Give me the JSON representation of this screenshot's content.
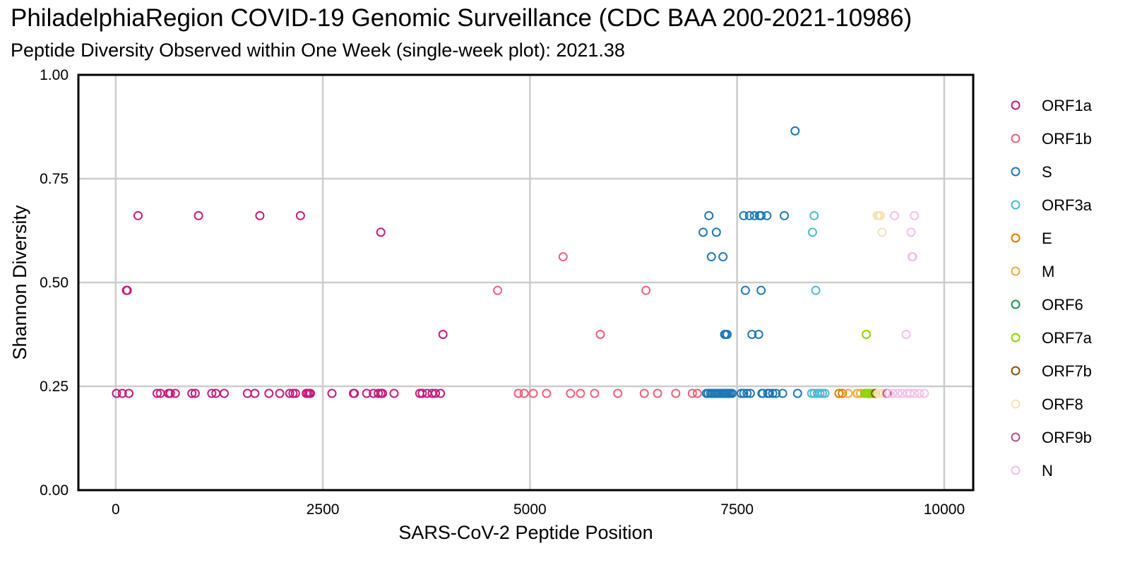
{
  "chart_data": {
    "type": "scatter",
    "title": "PhiladelphiaRegion COVID-19 Genomic Surveillance (CDC BAA 200-2021-10986)",
    "subtitle": "Peptide Diversity Observed within One Week (single-week plot): 2021.38",
    "xlabel": "SARS-CoV-2 Peptide Position",
    "ylabel": "Shannon Diversity",
    "xlim": [
      -450,
      10350
    ],
    "ylim": [
      0,
      1.0
    ],
    "x_ticks": [
      0,
      2500,
      5000,
      7500,
      10000
    ],
    "x_tick_labels": [
      "0",
      "2500",
      "5000",
      "7500",
      "10000"
    ],
    "y_ticks": [
      0,
      0.25,
      0.5,
      0.75,
      1.0
    ],
    "y_tick_labels": [
      "0.00",
      "0.25",
      "0.50",
      "0.75",
      "1.00"
    ],
    "grid": true,
    "legend_position": "right",
    "marker": "hollow-circle",
    "series": [
      {
        "name": "ORF1a",
        "color": "#c51b7d",
        "x": [
          10,
          80,
          160,
          130,
          140,
          270,
          500,
          540,
          640,
          660,
          720,
          920,
          960,
          1000,
          1160,
          1210,
          1310,
          1590,
          1680,
          1740,
          1850,
          1980,
          2100,
          2140,
          2170,
          2230,
          2300,
          2320,
          2350,
          2340,
          2610,
          2870,
          2880,
          3030,
          3110,
          3170,
          3200,
          3220,
          3360,
          3670,
          3700,
          3760,
          3820,
          3860,
          3920,
          3200,
          3950
        ],
        "y": [
          0.233,
          0.233,
          0.233,
          0.481,
          0.481,
          0.661,
          0.233,
          0.233,
          0.233,
          0.233,
          0.233,
          0.233,
          0.233,
          0.661,
          0.233,
          0.233,
          0.233,
          0.233,
          0.233,
          0.661,
          0.233,
          0.233,
          0.233,
          0.233,
          0.233,
          0.661,
          0.233,
          0.233,
          0.233,
          0.233,
          0.233,
          0.233,
          0.233,
          0.233,
          0.233,
          0.233,
          0.233,
          0.233,
          0.233,
          0.233,
          0.233,
          0.233,
          0.233,
          0.233,
          0.233,
          0.621,
          0.375
        ]
      },
      {
        "name": "ORF1b",
        "color": "#f0607a",
        "x": [
          4610,
          4860,
          4930,
          5040,
          5200,
          5400,
          5490,
          5610,
          5780,
          5850,
          6060,
          6380,
          6400,
          6540,
          6760,
          6960,
          7020
        ],
        "y": [
          0.481,
          0.233,
          0.233,
          0.233,
          0.233,
          0.562,
          0.233,
          0.233,
          0.233,
          0.375,
          0.233,
          0.233,
          0.481,
          0.233,
          0.233,
          0.233,
          0.233
        ]
      },
      {
        "name": "S",
        "color": "#1f78b4",
        "x": [
          7090,
          7130,
          7150,
          7180,
          7200,
          7220,
          7240,
          7260,
          7290,
          7320,
          7340,
          7360,
          7370,
          7380,
          7400,
          7420,
          7440,
          7160,
          7190,
          7250,
          7330,
          7350,
          7360,
          7380,
          7550,
          7580,
          7620,
          7660,
          7680,
          7760,
          7800,
          7810,
          7870,
          7890,
          7930,
          7970,
          8050,
          8230,
          7580,
          7650,
          7710,
          7770,
          7790,
          7860,
          8070,
          7600,
          7790,
          8200
        ],
        "y": [
          0.621,
          0.233,
          0.233,
          0.233,
          0.233,
          0.233,
          0.233,
          0.233,
          0.233,
          0.233,
          0.233,
          0.233,
          0.233,
          0.233,
          0.233,
          0.233,
          0.233,
          0.661,
          0.562,
          0.621,
          0.562,
          0.375,
          0.375,
          0.375,
          0.233,
          0.233,
          0.233,
          0.233,
          0.375,
          0.375,
          0.233,
          0.233,
          0.233,
          0.233,
          0.233,
          0.233,
          0.233,
          0.233,
          0.661,
          0.661,
          0.661,
          0.661,
          0.661,
          0.661,
          0.661,
          0.481,
          0.481,
          0.865
        ]
      },
      {
        "name": "ORF3a",
        "color": "#4db8d6",
        "x": [
          8400,
          8430,
          8470,
          8500,
          8530,
          8560,
          8410,
          8430,
          8450
        ],
        "y": [
          0.233,
          0.233,
          0.233,
          0.233,
          0.233,
          0.233,
          0.621,
          0.661,
          0.481
        ]
      },
      {
        "name": "E",
        "color": "#e07b00",
        "x": [
          8730,
          8770
        ],
        "y": [
          0.233,
          0.233
        ]
      },
      {
        "name": "M",
        "color": "#f5a742",
        "x": [
          8840,
          8950,
          8990
        ],
        "y": [
          0.233,
          0.233,
          0.233
        ]
      },
      {
        "name": "ORF6",
        "color": "#1a9850",
        "x": [
          9060
        ],
        "y": [
          0.233
        ]
      },
      {
        "name": "ORF7a",
        "color": "#8fd400",
        "x": [
          9040,
          9060,
          9080,
          9100,
          9120,
          9140,
          9060
        ],
        "y": [
          0.233,
          0.233,
          0.233,
          0.233,
          0.233,
          0.233,
          0.375
        ]
      },
      {
        "name": "ORF7b",
        "color": "#8c510a",
        "x": [
          9170
        ],
        "y": [
          0.233
        ]
      },
      {
        "name": "ORF8",
        "color": "#f6e2b8",
        "x": [
          9200,
          9220,
          9240,
          9260,
          9190,
          9210,
          9230,
          9250
        ],
        "y": [
          0.233,
          0.233,
          0.233,
          0.233,
          0.661,
          0.661,
          0.661,
          0.621
        ]
      },
      {
        "name": "ORF9b",
        "color": "#b5528b",
        "x": [
          9310
        ],
        "y": [
          0.233
        ]
      },
      {
        "name": "N",
        "color": "#f2c1ea",
        "x": [
          9330,
          9380,
          9440,
          9490,
          9550,
          9590,
          9640,
          9700,
          9760,
          9400,
          9640,
          9600,
          9610,
          9620,
          9540
        ],
        "y": [
          0.233,
          0.233,
          0.233,
          0.233,
          0.233,
          0.233,
          0.233,
          0.233,
          0.233,
          0.661,
          0.661,
          0.621,
          0.562,
          0.562,
          0.375
        ]
      }
    ]
  }
}
